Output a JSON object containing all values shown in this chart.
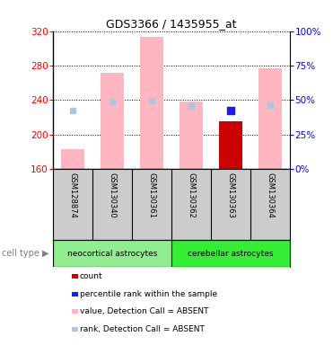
{
  "title": "GDS3366 / 1435955_at",
  "samples": [
    "GSM128874",
    "GSM130340",
    "GSM130361",
    "GSM130362",
    "GSM130363",
    "GSM130364"
  ],
  "value_absent": [
    183,
    272,
    313,
    238,
    null,
    277
  ],
  "rank_absent": [
    228,
    238,
    239,
    233,
    null,
    234
  ],
  "count_value": [
    null,
    null,
    null,
    null,
    215,
    null
  ],
  "percentile_rank": [
    null,
    null,
    null,
    null,
    228,
    null
  ],
  "ylim": [
    160,
    320
  ],
  "yticks": [
    160,
    200,
    240,
    280,
    320
  ],
  "y2lim": [
    0,
    100
  ],
  "y2ticks": [
    0,
    25,
    50,
    75,
    100
  ],
  "bar_color_absent": "#ffb6c1",
  "rank_color_absent": "#b0c4de",
  "count_color": "#cc0000",
  "percentile_color": "#1a1aff",
  "neo_color": "#90ee90",
  "cer_color": "#33ee33",
  "bg_color": "#cccccc",
  "legend_items": [
    {
      "label": "count",
      "color": "#cc0000"
    },
    {
      "label": "percentile rank within the sample",
      "color": "#1a1aff"
    },
    {
      "label": "value, Detection Call = ABSENT",
      "color": "#ffb6c1"
    },
    {
      "label": "rank, Detection Call = ABSENT",
      "color": "#b0c4de"
    }
  ]
}
